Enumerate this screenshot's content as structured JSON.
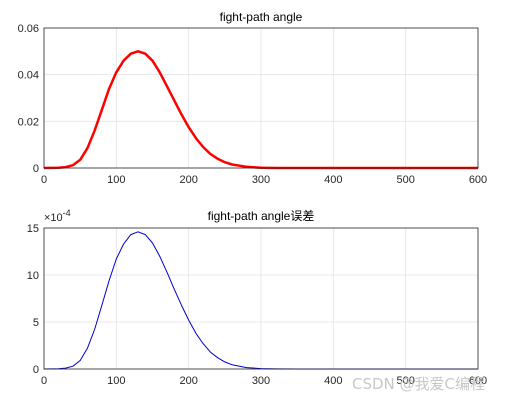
{
  "watermark": "CSDN @我爱C编程",
  "chart_data": [
    {
      "type": "line",
      "title": "fight-path angle",
      "xlabel": "",
      "ylabel": "",
      "xlim": [
        0,
        600
      ],
      "ylim": [
        0,
        0.06
      ],
      "xticks": [
        "0",
        "100",
        "200",
        "300",
        "400",
        "500",
        "600"
      ],
      "yticks": [
        "0",
        "0.02",
        "0.04",
        "0.06"
      ],
      "grid": true,
      "series": [
        {
          "color": "#ff0000",
          "x": [
            0,
            20,
            30,
            40,
            50,
            60,
            70,
            80,
            90,
            100,
            110,
            120,
            130,
            140,
            150,
            160,
            170,
            180,
            190,
            200,
            210,
            220,
            230,
            240,
            250,
            260,
            280,
            300,
            320,
            350,
            400,
            500,
            600
          ],
          "y": [
            0,
            0.0001,
            0.0004,
            0.0012,
            0.0035,
            0.0085,
            0.016,
            0.025,
            0.034,
            0.041,
            0.046,
            0.049,
            0.05,
            0.049,
            0.046,
            0.041,
            0.035,
            0.029,
            0.023,
            0.0175,
            0.0128,
            0.009,
            0.006,
            0.004,
            0.0025,
            0.0015,
            0.0005,
            0.0001,
            0,
            0,
            0,
            0,
            0
          ]
        }
      ]
    },
    {
      "type": "line",
      "title": "fight-path angle误差",
      "xlabel": "",
      "ylabel": "",
      "xlim": [
        0,
        600
      ],
      "ylim": [
        0,
        15
      ],
      "y_multiplier": "×10",
      "y_multiplier_exp": "-4",
      "xticks": [
        "0",
        "100",
        "200",
        "300",
        "400",
        "500",
        "600"
      ],
      "yticks": [
        "0",
        "5",
        "10",
        "15"
      ],
      "grid": true,
      "series": [
        {
          "color": "#0000cc",
          "x": [
            0,
            20,
            30,
            40,
            50,
            60,
            70,
            80,
            90,
            100,
            110,
            120,
            130,
            140,
            150,
            160,
            170,
            180,
            190,
            200,
            210,
            220,
            230,
            240,
            250,
            260,
            280,
            300,
            320,
            350,
            400,
            500,
            600
          ],
          "y": [
            0,
            0.02,
            0.1,
            0.3,
            0.9,
            2.2,
            4.2,
            6.8,
            9.4,
            11.7,
            13.3,
            14.3,
            14.6,
            14.3,
            13.4,
            12.0,
            10.3,
            8.5,
            6.8,
            5.2,
            3.8,
            2.7,
            1.8,
            1.2,
            0.75,
            0.45,
            0.15,
            0.04,
            0.01,
            0,
            0,
            0,
            0
          ]
        }
      ]
    }
  ]
}
